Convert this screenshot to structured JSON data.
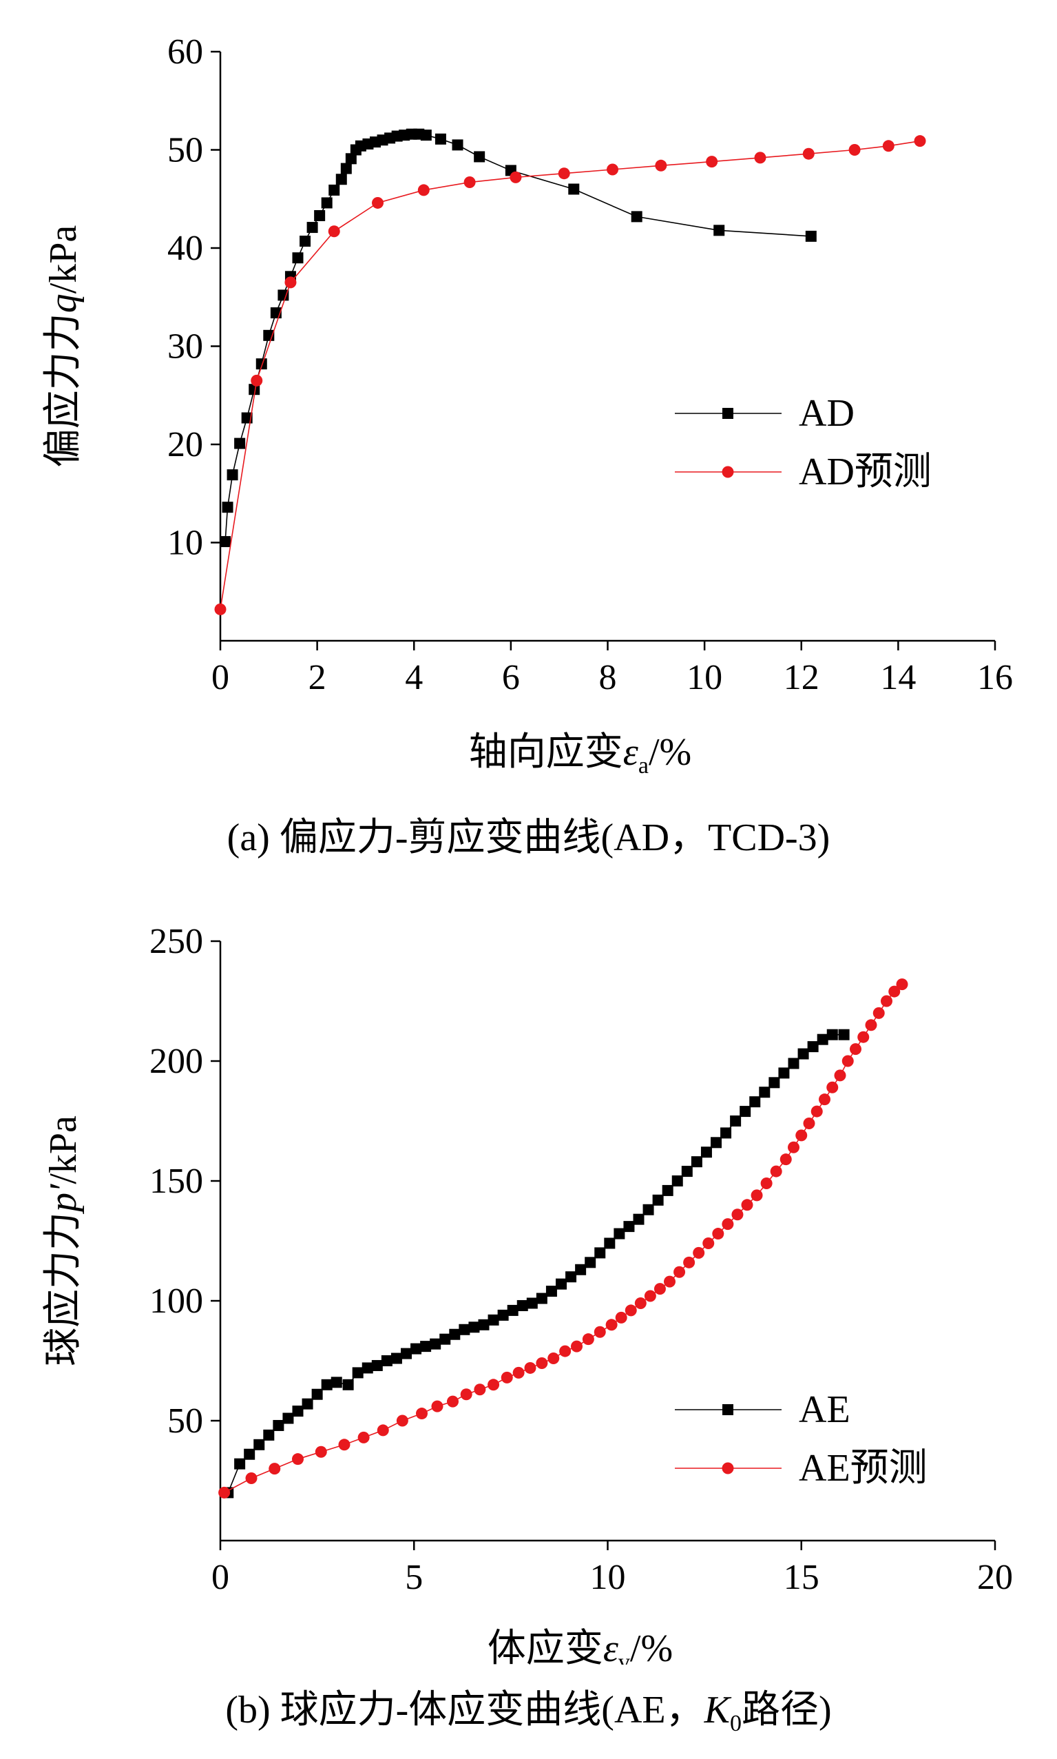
{
  "chart_data": [
    {
      "type": "scatter",
      "panel": "a",
      "caption": "(a) 偏应力-剪应变曲线(AD，TCD-3)",
      "xlabel": "轴向应变",
      "xlabel_symbol": "ε",
      "xlabel_sub": "a",
      "xlabel_unit": "/%",
      "ylabel": "偏应力力",
      "ylabel_symbol": "q",
      "ylabel_unit": "/kPa",
      "xlim": [
        0,
        16
      ],
      "ylim": [
        0,
        60
      ],
      "xticks": [
        0,
        2,
        4,
        6,
        8,
        10,
        12,
        14,
        16
      ],
      "yticks": [
        10,
        20,
        30,
        40,
        50,
        60
      ],
      "legend_position": "right-middle",
      "series": [
        {
          "name": "AD",
          "color": "#000000",
          "marker": "square",
          "x": [
            0.1,
            0.15,
            0.25,
            0.4,
            0.55,
            0.7,
            0.85,
            1.0,
            1.15,
            1.3,
            1.45,
            1.6,
            1.75,
            1.9,
            2.05,
            2.2,
            2.35,
            2.5,
            2.6,
            2.7,
            2.8,
            2.9,
            3.05,
            3.2,
            3.35,
            3.5,
            3.65,
            3.8,
            3.95,
            4.1,
            4.25,
            4.55,
            4.9,
            5.35,
            6.0,
            7.3,
            8.6,
            10.3,
            12.2
          ],
          "y": [
            10.1,
            13.6,
            16.9,
            20.1,
            22.7,
            25.6,
            28.2,
            31.1,
            33.4,
            35.2,
            37.1,
            39.0,
            40.7,
            42.1,
            43.3,
            44.6,
            45.9,
            47.0,
            48.1,
            49.1,
            50.0,
            50.4,
            50.6,
            50.8,
            51.0,
            51.2,
            51.4,
            51.5,
            51.6,
            51.6,
            51.5,
            51.1,
            50.5,
            49.3,
            47.9,
            46.0,
            43.2,
            41.8,
            41.2
          ]
        },
        {
          "name": "AD预测",
          "color": "#e8191e",
          "marker": "circle",
          "x": [
            0.0,
            0.75,
            1.45,
            2.35,
            3.25,
            4.2,
            5.15,
            6.1,
            7.1,
            8.1,
            9.1,
            10.15,
            11.15,
            12.15,
            13.1,
            13.8,
            14.45
          ],
          "y": [
            3.2,
            26.5,
            36.5,
            41.7,
            44.6,
            45.9,
            46.7,
            47.2,
            47.6,
            48.0,
            48.4,
            48.8,
            49.2,
            49.6,
            50.0,
            50.4,
            50.9
          ]
        }
      ]
    },
    {
      "type": "scatter",
      "panel": "b",
      "caption_prefix": "(b) 球应力-体应变曲线(AE，",
      "caption_k": "K",
      "caption_k_sub": "0",
      "caption_suffix": "路径)",
      "xlabel": "体应变",
      "xlabel_symbol": "ε",
      "xlabel_sub": "v",
      "xlabel_unit": "/%",
      "ylabel": "球应力力",
      "ylabel_symbol": "p′",
      "ylabel_unit": "/kPa",
      "xlim": [
        0,
        20
      ],
      "ylim": [
        0,
        250
      ],
      "xticks": [
        0,
        5,
        10,
        15,
        20
      ],
      "yticks": [
        50,
        100,
        150,
        200,
        250
      ],
      "legend_position": "bottom-right",
      "series": [
        {
          "name": "AE",
          "color": "#000000",
          "marker": "square",
          "x": [
            0.2,
            0.5,
            0.75,
            1.0,
            1.25,
            1.5,
            1.75,
            2.0,
            2.25,
            2.5,
            2.75,
            3.0,
            3.3,
            3.55,
            3.8,
            4.05,
            4.3,
            4.55,
            4.8,
            5.05,
            5.3,
            5.55,
            5.8,
            6.05,
            6.3,
            6.55,
            6.8,
            7.05,
            7.3,
            7.55,
            7.8,
            8.05,
            8.3,
            8.55,
            8.8,
            9.05,
            9.3,
            9.55,
            9.8,
            10.05,
            10.3,
            10.55,
            10.8,
            11.05,
            11.3,
            11.55,
            11.8,
            12.05,
            12.3,
            12.55,
            12.8,
            13.05,
            13.3,
            13.55,
            13.8,
            14.05,
            14.3,
            14.55,
            14.8,
            15.05,
            15.3,
            15.55,
            15.8,
            16.1
          ],
          "y": [
            20,
            32,
            36,
            40,
            44,
            48,
            51,
            54,
            57,
            61,
            65,
            66,
            65,
            70,
            72,
            73,
            75,
            76,
            78,
            80,
            81,
            82,
            84,
            86,
            88,
            89,
            90,
            92,
            94,
            96,
            98,
            99,
            101,
            104,
            107,
            110,
            113,
            116,
            120,
            124,
            128,
            131,
            134,
            138,
            142,
            146,
            150,
            154,
            158,
            162,
            166,
            170,
            175,
            179,
            183,
            187,
            191,
            195,
            199,
            203,
            206,
            209,
            211,
            211
          ]
        },
        {
          "name": "AE预测",
          "color": "#e8191e",
          "marker": "circle",
          "x": [
            0.1,
            0.8,
            1.4,
            2.0,
            2.6,
            3.2,
            3.7,
            4.2,
            4.7,
            5.2,
            5.6,
            6.0,
            6.35,
            6.7,
            7.05,
            7.4,
            7.7,
            8.0,
            8.3,
            8.6,
            8.9,
            9.2,
            9.5,
            9.8,
            10.1,
            10.35,
            10.6,
            10.85,
            11.1,
            11.35,
            11.6,
            11.85,
            12.1,
            12.35,
            12.6,
            12.85,
            13.1,
            13.35,
            13.6,
            13.85,
            14.1,
            14.35,
            14.6,
            14.8,
            15.0,
            15.2,
            15.4,
            15.6,
            15.8,
            16.0,
            16.2,
            16.4,
            16.6,
            16.8,
            17.0,
            17.2,
            17.4,
            17.6
          ],
          "y": [
            20,
            26,
            30,
            34,
            37,
            40,
            43,
            46,
            50,
            53,
            56,
            58,
            61,
            63,
            65,
            68,
            70,
            72,
            74,
            76,
            79,
            81,
            84,
            87,
            90,
            93,
            96,
            99,
            102,
            105,
            108,
            112,
            116,
            120,
            124,
            128,
            132,
            136,
            140,
            144,
            149,
            154,
            159,
            164,
            169,
            174,
            179,
            184,
            189,
            194,
            200,
            205,
            210,
            215,
            220,
            225,
            229,
            232
          ]
        }
      ]
    }
  ]
}
